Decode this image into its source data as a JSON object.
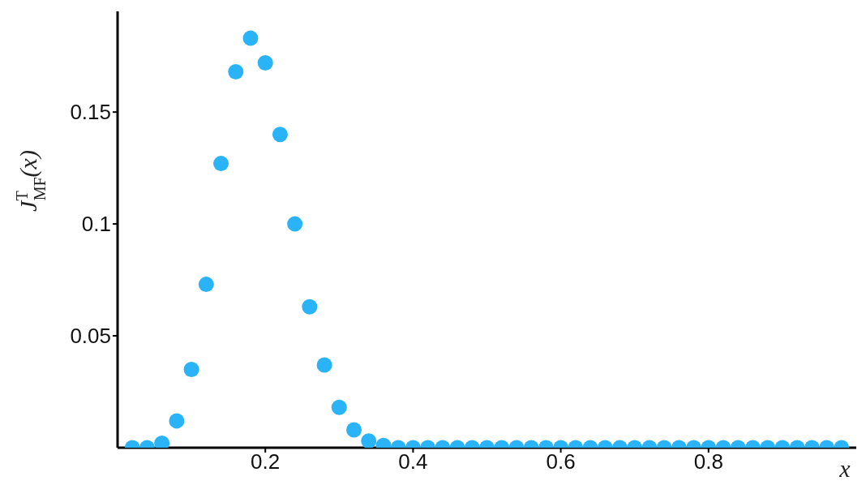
{
  "chart_data": {
    "type": "scatter",
    "xlabel": "x",
    "ylabel": "J$^{T}$$_{MF}$(x)",
    "x": [
      0.02,
      0.04,
      0.06,
      0.08,
      0.1,
      0.12,
      0.14,
      0.16,
      0.18,
      0.2,
      0.22,
      0.24,
      0.26,
      0.28,
      0.3,
      0.32,
      0.34,
      0.36,
      0.38,
      0.4,
      0.42,
      0.44,
      0.46,
      0.48,
      0.5,
      0.52,
      0.54,
      0.56,
      0.58,
      0.6,
      0.62,
      0.64,
      0.66,
      0.68,
      0.7,
      0.72,
      0.74,
      0.76,
      0.78,
      0.8,
      0.82,
      0.84,
      0.86,
      0.88,
      0.9,
      0.92,
      0.94,
      0.96,
      0.98
    ],
    "values": [
      0,
      0,
      0.002,
      0.012,
      0.035,
      0.073,
      0.127,
      0.168,
      0.183,
      0.172,
      0.14,
      0.1,
      0.063,
      0.037,
      0.018,
      0.008,
      0.003,
      0.001,
      0,
      0,
      0,
      0,
      0,
      0,
      0,
      0,
      0,
      0,
      0,
      0,
      0,
      0,
      0,
      0,
      0,
      0,
      0,
      0,
      0,
      0,
      0,
      0,
      0,
      0,
      0,
      0,
      0,
      0,
      0
    ],
    "color": "#2ab4f7",
    "marker": "circle",
    "xlim": [
      0,
      1
    ],
    "xticks": [
      0.2,
      0.4,
      0.6,
      0.8
    ],
    "ylim": [
      0,
      0.195
    ],
    "yticks": [
      0.05,
      0.1,
      0.15
    ],
    "grid": false,
    "legend": false
  }
}
